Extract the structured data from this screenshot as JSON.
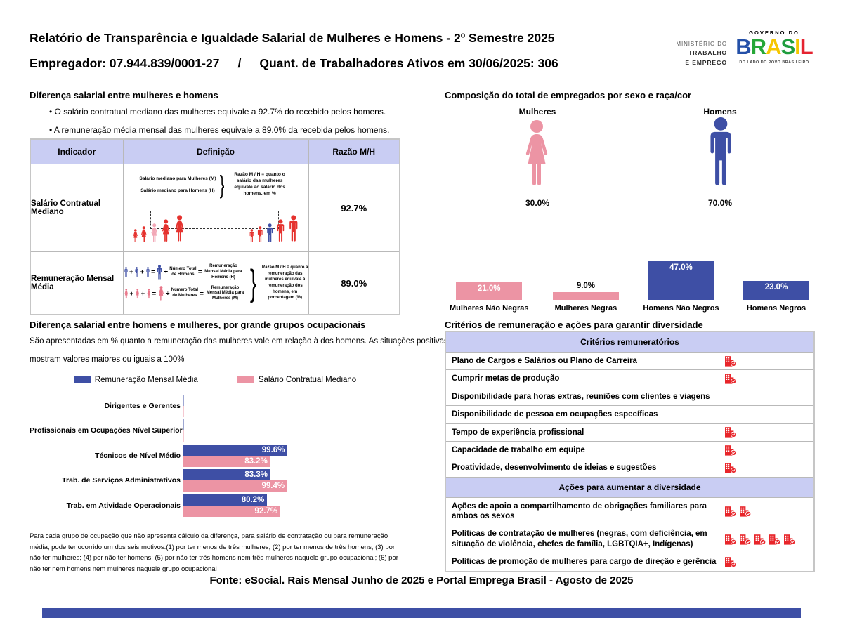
{
  "colors": {
    "blue": "#3e4fa5",
    "pink": "#ec94a4",
    "pink_light": "#f2a7b6",
    "lavender": "#c9cdf3",
    "red": "#e5322e",
    "icon_red": "#e8252a"
  },
  "page": {
    "header": {
      "title": "Relatório de Transparência e Igualdade Salarial de Mulheres e Homens - 2º Semestre 2025",
      "employer": "Empregador: 07.944.839/0001-27",
      "separator": "/",
      "active_workers": "Quant. de Trabalhadores Ativos em 30/06/2025: 306",
      "ministry_lines": [
        "MINISTÉRIO DO",
        "TRABALHO",
        "E EMPREGO"
      ],
      "gov_logo": {
        "top": "GOVERNO DO",
        "brand": "BRASIL",
        "brand_letter_colors": [
          "#2450a8",
          "#26a737",
          "#f6c700",
          "#1f9d3e",
          "#f6c700",
          "#e52330"
        ],
        "tagline": "DO LADO DO POVO BRASILEIRO"
      }
    },
    "salary_gap": {
      "heading": "Diferença salarial entre mulheres e homens",
      "bullets": [
        "O salário contratual mediano das mulheres equivale a 92.7% do recebido pelos homens.",
        "A remuneração média mensal das mulheres equivale a 89.0% da recebida pelos homens."
      ],
      "table": {
        "headers": [
          "Indicador",
          "Definição",
          "Razão M/H"
        ],
        "rows": [
          {
            "indicator": "Salário Contratual Mediano",
            "ratio": "92.7%"
          },
          {
            "indicator": "Remuneração Mensal Média",
            "ratio": "89.0%"
          }
        ],
        "definitions": {
          "median": {
            "line1": "Salário mediano para Mulheres (M)",
            "line2": "Salário mediano para Homens (H)",
            "note": "Razão M / H = quanto o salário das mulheres equivale ao salário dos homens, em %"
          },
          "mean": {
            "men_numerator": "Número Total de Homens",
            "men_result": "Remuneração Mensal Média para Homens (H)",
            "women_numerator": "Número Total de Mulheres",
            "women_result": "Remuneração Mensal Média para Mulheres (M)",
            "note": "Razão M / H = quanto a remuneração das mulheres equivale à remuneração dos homens, em porcentagem (%)"
          }
        }
      },
      "symbols": {
        "plus": "+",
        "equals": "=",
        "divide": "÷"
      }
    },
    "occupational": {
      "heading": "Diferença salarial entre homens e mulheres, por grande grupos ocupacionais",
      "description": [
        "São apresentadas em % quanto a remuneração das mulheres vale em relação à dos homens. As situações positivas",
        "mostram valores maiores ou iguais a 100%"
      ],
      "footnote": "Para cada grupo de ocupação que não apresenta cálculo da diferença, para salário de contratação ou para remuneração média, pode ter ocorrido um dos seis motivos:(1) por ter menos de três mulheres; (2) por ter menos de três homens; (3) por não ter mulheres; (4) por não ter homens; (5) por não ter três homens nem três mulheres naquele grupo ocupacional; (6) por não ter nem homens nem mulheres naquele grupo ocupacional"
    },
    "composition": {
      "heading": "Composição do total de empregados por sexo e raça/cor"
    },
    "criteria": {
      "heading": "Critérios de remuneração e ações para garantir diversidade",
      "sections": [
        {
          "band": "Critérios remuneratórios",
          "rows": [
            {
              "label": "Plano de Cargos e Salários ou Plano de Carreira",
              "icons": 1
            },
            {
              "label": "Cumprir metas de produção",
              "icons": 1
            },
            {
              "label": "Disponibilidade para horas extras, reuniões com clientes e viagens",
              "icons": 0
            },
            {
              "label": "Disponibilidade de pessoa em ocupações específicas",
              "icons": 0
            },
            {
              "label": "Tempo de experiência profissional",
              "icons": 1
            },
            {
              "label": "Capacidade de trabalho em equipe",
              "icons": 1
            },
            {
              "label": "Proatividade, desenvolvimento de ideias e sugestões",
              "icons": 1
            }
          ]
        },
        {
          "band": "Ações para aumentar a diversidade",
          "rows": [
            {
              "label": "Ações de apoio a compartilhamento de obrigações familiares para ambos os sexos",
              "icons": 2
            },
            {
              "label": "Políticas de contratação de mulheres (negras, com deficiência, em situação de violência, chefes de família, LGBTQIA+, Indígenas)",
              "icons": 5
            },
            {
              "label": "Políticas de promoção de mulheres para cargo de direção e gerência",
              "icons": 1
            }
          ]
        }
      ]
    },
    "footer": {
      "source": "Fonte: eSocial. Rais Mensal Junho de 2025 e Portal Emprega Brasil - Agosto de 2025"
    }
  },
  "chart_data": [
    {
      "id": "sex_composition",
      "type": "pictogram",
      "title": "Composição do total de empregados por sexo e raça/cor",
      "categories": [
        "Mulheres",
        "Homens"
      ],
      "values": [
        30.0,
        70.0
      ],
      "value_labels": [
        "30.0%",
        "70.0%"
      ],
      "colors": [
        "#ec94a4",
        "#3e4fa5"
      ]
    },
    {
      "id": "race_composition",
      "type": "bar",
      "categories": [
        "Mulheres Não Negras",
        "Mulheres Negras",
        "Homens Não Negros",
        "Homens Negros"
      ],
      "values": [
        21.0,
        9.0,
        47.0,
        23.0
      ],
      "value_labels": [
        "21.0%",
        "9.0%",
        "47.0%",
        "23.0%"
      ],
      "colors": [
        "#ec94a4",
        "#ec94a4",
        "#3e4fa5",
        "#3e4fa5"
      ],
      "ylim": [
        0,
        50
      ],
      "grid": false
    },
    {
      "id": "occupational_gap",
      "type": "bar",
      "orientation": "horizontal",
      "categories": [
        "Dirigentes e Gerentes",
        "Profissionais em Ocupações Nível Superior",
        "Técnicos de Nível Médio",
        "Trab. de Serviços Administrativos",
        "Trab. em Atividade Operacionais"
      ],
      "series": [
        {
          "name": "Remuneração Mensal Média",
          "color": "#3e4fa5",
          "values": [
            null,
            null,
            99.6,
            83.3,
            80.2
          ],
          "value_labels": [
            null,
            null,
            "99.6%",
            "83.3%",
            "80.2%"
          ]
        },
        {
          "name": "Salário Contratual Mediano",
          "color": "#ec94a4",
          "values": [
            null,
            null,
            83.2,
            99.4,
            92.7
          ],
          "value_labels": [
            null,
            null,
            "83.2%",
            "99.4%",
            "92.7%"
          ]
        }
      ],
      "xlim": [
        0,
        105
      ],
      "legend_position": "top",
      "grid": false
    }
  ]
}
